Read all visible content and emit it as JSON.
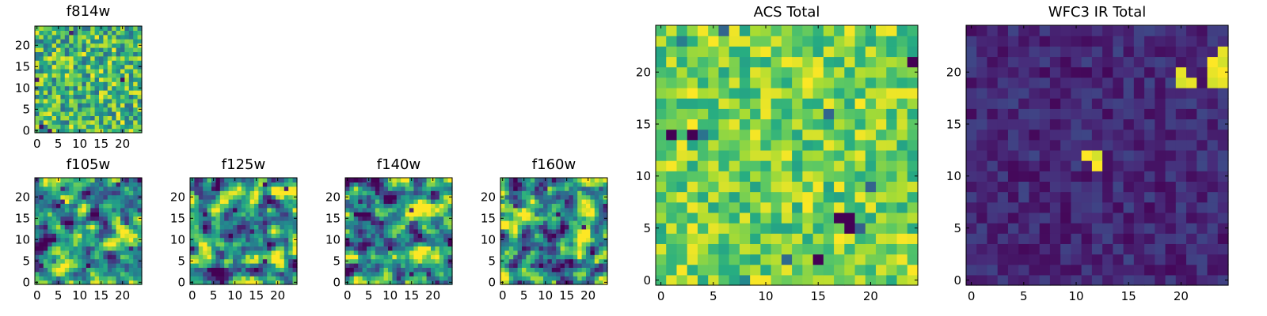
{
  "chart_data": [
    {
      "id": "f814w",
      "type": "heatmap",
      "title": "f814w",
      "grid_size": 25,
      "xlim": [
        0,
        24
      ],
      "ylim": [
        0,
        24
      ],
      "xticks": [
        0,
        5,
        10,
        15,
        20
      ],
      "yticks": [
        0,
        5,
        10,
        15,
        20
      ],
      "colormap": "viridis",
      "distribution": "uniform-noise",
      "seed": 814,
      "xlabel": "",
      "ylabel": ""
    },
    {
      "id": "f105w",
      "type": "heatmap",
      "title": "f105w",
      "grid_size": 25,
      "xlim": [
        0,
        24
      ],
      "ylim": [
        0,
        24
      ],
      "xticks": [
        0,
        5,
        10,
        15,
        20
      ],
      "yticks": [
        0,
        5,
        10,
        15,
        20
      ],
      "colormap": "viridis",
      "distribution": "smooth-noise",
      "seed": 105,
      "xlabel": "",
      "ylabel": ""
    },
    {
      "id": "f125w",
      "type": "heatmap",
      "title": "f125w",
      "grid_size": 25,
      "xlim": [
        0,
        24
      ],
      "ylim": [
        0,
        24
      ],
      "xticks": [
        0,
        5,
        10,
        15,
        20
      ],
      "yticks": [
        0,
        5,
        10,
        15,
        20
      ],
      "colormap": "viridis",
      "distribution": "smooth-noise",
      "seed": 125,
      "xlabel": "",
      "ylabel": ""
    },
    {
      "id": "f140w",
      "type": "heatmap",
      "title": "f140w",
      "grid_size": 25,
      "xlim": [
        0,
        24
      ],
      "ylim": [
        0,
        24
      ],
      "xticks": [
        0,
        5,
        10,
        15,
        20
      ],
      "yticks": [
        0,
        5,
        10,
        15,
        20
      ],
      "colormap": "viridis",
      "distribution": "smooth-noise",
      "seed": 140,
      "xlabel": "",
      "ylabel": ""
    },
    {
      "id": "f160w",
      "type": "heatmap",
      "title": "f160w",
      "grid_size": 25,
      "xlim": [
        0,
        24
      ],
      "ylim": [
        0,
        24
      ],
      "xticks": [
        0,
        5,
        10,
        15,
        20
      ],
      "yticks": [
        0,
        5,
        10,
        15,
        20
      ],
      "colormap": "viridis",
      "distribution": "smooth-noise",
      "seed": 160,
      "xlabel": "",
      "ylabel": ""
    },
    {
      "id": "acs-total",
      "type": "heatmap",
      "title": "ACS Total",
      "grid_size": 25,
      "xlim": [
        0,
        24
      ],
      "ylim": [
        0,
        24
      ],
      "xticks": [
        0,
        5,
        10,
        15,
        20
      ],
      "yticks": [
        0,
        5,
        10,
        15,
        20
      ],
      "colormap": "viridis",
      "distribution": "bright-noise",
      "seed": 7,
      "xlabel": "",
      "ylabel": "",
      "dark_pixels": [
        [
          1,
          14
        ],
        [
          3,
          14
        ],
        [
          17,
          6
        ],
        [
          18,
          6
        ],
        [
          18,
          5
        ],
        [
          15,
          2
        ],
        [
          24,
          21
        ]
      ]
    },
    {
      "id": "wfc3-ir-total",
      "type": "heatmap",
      "title": "WFC3 IR Total",
      "grid_size": 25,
      "xlim": [
        0,
        24
      ],
      "ylim": [
        0,
        24
      ],
      "xticks": [
        0,
        5,
        10,
        15,
        20
      ],
      "yticks": [
        0,
        5,
        10,
        15,
        20
      ],
      "colormap": "viridis",
      "distribution": "dark-with-sources",
      "seed": 33,
      "xlabel": "",
      "ylabel": "",
      "bright_pixels": [
        [
          11,
          12
        ],
        [
          12,
          12
        ],
        [
          12,
          11
        ],
        [
          20,
          19
        ],
        [
          21,
          19
        ],
        [
          23,
          19
        ],
        [
          24,
          19
        ],
        [
          20,
          20
        ],
        [
          23,
          20
        ],
        [
          24,
          20
        ],
        [
          23,
          21
        ],
        [
          24,
          21
        ],
        [
          24,
          22
        ]
      ]
    }
  ],
  "colors": {
    "axes": "#000000",
    "background": "#ffffff"
  }
}
